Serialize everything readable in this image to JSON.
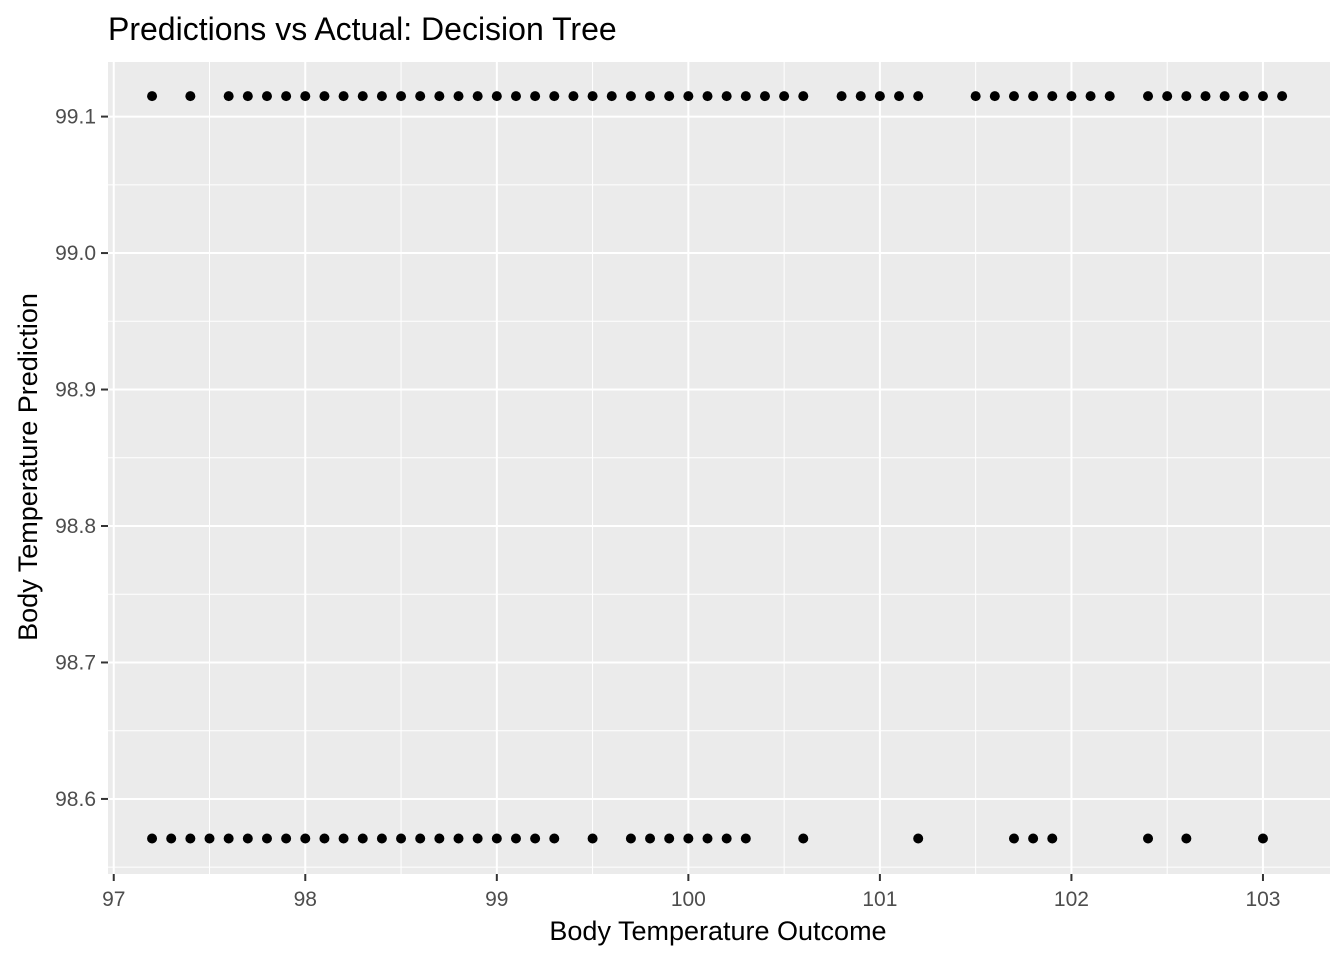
{
  "chart_data": {
    "type": "scatter",
    "title": "Predictions vs Actual: Decision Tree",
    "xlabel": "Body Temperature Outcome",
    "ylabel": "Body Temperature Prediction",
    "xlim": [
      96.97,
      103.35
    ],
    "ylim": [
      98.545,
      99.14
    ],
    "x_ticks": [
      97,
      98,
      99,
      100,
      101,
      102,
      103
    ],
    "x_tick_labels": [
      "97",
      "98",
      "99",
      "100",
      "101",
      "102",
      "103"
    ],
    "y_ticks": [
      98.6,
      98.7,
      98.8,
      98.9,
      99.0,
      99.1
    ],
    "y_tick_labels": [
      "98.6",
      "98.7",
      "98.8",
      "98.9",
      "99.0",
      "99.1"
    ],
    "grid": true,
    "panel_background": "#ebebeb",
    "point_color": "#000000",
    "series": [
      {
        "y": 99.115,
        "x": [
          97.2,
          97.4,
          97.6,
          97.7,
          97.8,
          97.9,
          98.0,
          98.1,
          98.2,
          98.3,
          98.4,
          98.5,
          98.6,
          98.7,
          98.8,
          98.9,
          99.0,
          99.1,
          99.2,
          99.3,
          99.4,
          99.5,
          99.6,
          99.7,
          99.8,
          99.9,
          100.0,
          100.1,
          100.2,
          100.3,
          100.4,
          100.5,
          100.6,
          100.8,
          100.9,
          101.0,
          101.1,
          101.2,
          101.5,
          101.6,
          101.7,
          101.8,
          101.9,
          102.0,
          102.1,
          102.2,
          102.4,
          102.5,
          102.6,
          102.7,
          102.8,
          102.9,
          103.0,
          103.1
        ]
      },
      {
        "y": 98.571,
        "x": [
          97.2,
          97.3,
          97.4,
          97.5,
          97.6,
          97.7,
          97.8,
          97.9,
          98.0,
          98.1,
          98.2,
          98.3,
          98.4,
          98.5,
          98.6,
          98.7,
          98.8,
          98.9,
          99.0,
          99.1,
          99.2,
          99.3,
          99.5,
          99.7,
          99.8,
          99.9,
          100.0,
          100.1,
          100.2,
          100.3,
          100.6,
          101.2,
          101.7,
          101.8,
          101.9,
          102.4,
          102.6,
          103.0
        ]
      }
    ]
  }
}
